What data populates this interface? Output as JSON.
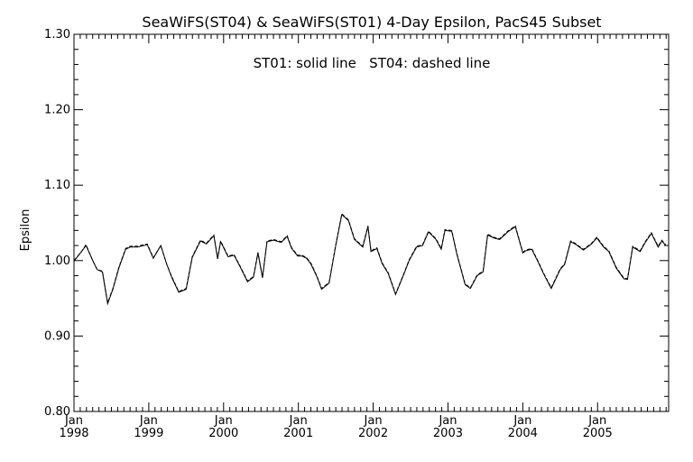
{
  "chart_data": {
    "type": "line",
    "title": "SeaWiFS(ST04) & SeaWiFS(ST01) 4-Day Epsilon, PacS45 Subset",
    "annotation": "ST01: solid line   ST04: dashed line",
    "xlabel": "",
    "ylabel": "Epsilon",
    "xlim": [
      1998.0,
      2005.95
    ],
    "ylim": [
      0.8,
      1.3
    ],
    "y_ticks": [
      "0.80",
      "0.90",
      "1.00",
      "1.10",
      "1.20",
      "1.30"
    ],
    "x_ticks": [
      {
        "value": 1998,
        "month": "Jan",
        "year": "1998"
      },
      {
        "value": 1999,
        "month": "Jan",
        "year": "1999"
      },
      {
        "value": 2000,
        "month": "Jan",
        "year": "2000"
      },
      {
        "value": 2001,
        "month": "Jan",
        "year": "2001"
      },
      {
        "value": 2002,
        "month": "Jan",
        "year": "2002"
      },
      {
        "value": 2003,
        "month": "Jan",
        "year": "2003"
      },
      {
        "value": 2004,
        "month": "Jan",
        "year": "2004"
      },
      {
        "value": 2005,
        "month": "Jan",
        "year": "2005"
      }
    ],
    "grid": false,
    "line_color": "#000000",
    "series": [
      {
        "name": "ST01",
        "style": "solid",
        "x": [
          1998.0,
          1998.1,
          1998.16,
          1998.26,
          1998.31,
          1998.38,
          1998.45,
          1998.52,
          1998.6,
          1998.69,
          1998.75,
          1998.85,
          1998.98,
          1999.06,
          1999.16,
          1999.24,
          1999.31,
          1999.4,
          1999.5,
          1999.58,
          1999.69,
          1999.77,
          1999.87,
          1999.92,
          1999.96,
          2000.06,
          2000.14,
          2000.22,
          2000.32,
          2000.4,
          2000.46,
          2000.52,
          2000.58,
          2000.67,
          2000.77,
          2000.85,
          2000.91,
          2000.99,
          2001.05,
          2001.11,
          2001.17,
          2001.25,
          2001.31,
          2001.41,
          2001.5,
          2001.58,
          2001.67,
          2001.75,
          2001.86,
          2001.93,
          2001.97,
          2002.05,
          2002.12,
          2002.2,
          2002.3,
          2002.41,
          2002.48,
          2002.58,
          2002.66,
          2002.74,
          2002.84,
          2002.91,
          2002.96,
          2003.05,
          2003.12,
          2003.23,
          2003.3,
          2003.39,
          2003.47,
          2003.53,
          2003.61,
          2003.69,
          2003.8,
          2003.9,
          2004.0,
          2004.04,
          2004.12,
          2004.21,
          2004.28,
          2004.38,
          2004.5,
          2004.56,
          2004.64,
          2004.7,
          2004.81,
          2004.92,
          2004.99,
          2005.08,
          2005.15,
          2005.25,
          2005.35,
          2005.4,
          2005.47,
          2005.57,
          2005.63,
          2005.72,
          2005.81,
          2005.86,
          2005.91
        ],
        "y": [
          0.999,
          1.012,
          1.02,
          0.998,
          0.988,
          0.985,
          0.943,
          0.962,
          0.99,
          1.015,
          1.018,
          1.018,
          1.021,
          1.003,
          1.02,
          0.995,
          0.977,
          0.958,
          0.962,
          1.004,
          1.026,
          1.022,
          1.033,
          1.002,
          1.025,
          1.005,
          1.007,
          0.992,
          0.972,
          0.978,
          1.01,
          0.977,
          1.025,
          1.027,
          1.024,
          1.032,
          1.016,
          1.006,
          1.006,
          1.003,
          0.995,
          0.978,
          0.962,
          0.97,
          1.02,
          1.061,
          1.053,
          1.028,
          1.018,
          1.045,
          1.012,
          1.016,
          0.996,
          0.983,
          0.955,
          0.982,
          1.0,
          1.018,
          1.02,
          1.038,
          1.028,
          1.015,
          1.04,
          1.039,
          1.008,
          0.968,
          0.963,
          0.98,
          0.985,
          1.034,
          1.03,
          1.028,
          1.038,
          1.045,
          1.01,
          1.013,
          1.015,
          0.997,
          0.982,
          0.963,
          0.988,
          0.995,
          1.025,
          1.022,
          1.014,
          1.022,
          1.03,
          1.018,
          1.012,
          0.99,
          0.976,
          0.975,
          1.018,
          1.012,
          1.023,
          1.036,
          1.018,
          1.026,
          1.02
        ]
      },
      {
        "name": "ST04",
        "style": "dashed",
        "x": [
          1998.0,
          1998.1,
          1998.16,
          1998.26,
          1998.31,
          1998.38,
          1998.45,
          1998.52,
          1998.6,
          1998.69,
          1998.75,
          1998.85,
          1998.98,
          1999.06,
          1999.16,
          1999.24,
          1999.31,
          1999.4,
          1999.5,
          1999.58,
          1999.69,
          1999.77,
          1999.87,
          1999.92,
          1999.96,
          2000.06,
          2000.14,
          2000.22,
          2000.32,
          2000.4,
          2000.46,
          2000.52,
          2000.58,
          2000.67,
          2000.77,
          2000.85,
          2000.91,
          2000.99,
          2001.05,
          2001.11,
          2001.17,
          2001.25,
          2001.31,
          2001.41,
          2001.5,
          2001.58,
          2001.67,
          2001.75,
          2001.86,
          2001.93,
          2001.97,
          2002.05,
          2002.12,
          2002.2,
          2002.3,
          2002.41,
          2002.48,
          2002.58,
          2002.66,
          2002.74,
          2002.84,
          2002.91,
          2002.96,
          2003.05,
          2003.12,
          2003.23,
          2003.3,
          2003.39,
          2003.47,
          2003.53,
          2003.61,
          2003.69,
          2003.8,
          2003.9,
          2004.0,
          2004.04,
          2004.12,
          2004.21,
          2004.28,
          2004.38,
          2004.5,
          2004.56,
          2004.64,
          2004.7,
          2004.81,
          2004.92,
          2004.99,
          2005.08,
          2005.15,
          2005.25,
          2005.35,
          2005.4,
          2005.47,
          2005.57,
          2005.63,
          2005.72,
          2005.81,
          2005.86,
          2005.91
        ],
        "y": [
          1.0,
          1.012,
          1.021,
          0.998,
          0.988,
          0.986,
          0.944,
          0.963,
          0.991,
          1.016,
          1.019,
          1.019,
          1.022,
          1.004,
          1.02,
          0.995,
          0.978,
          0.959,
          0.963,
          1.005,
          1.027,
          1.023,
          1.034,
          1.003,
          1.026,
          1.006,
          1.008,
          0.993,
          0.973,
          0.979,
          1.011,
          0.978,
          1.026,
          1.028,
          1.025,
          1.033,
          1.017,
          1.007,
          1.007,
          1.004,
          0.996,
          0.979,
          0.963,
          0.971,
          1.021,
          1.062,
          1.054,
          1.029,
          1.019,
          1.046,
          1.013,
          1.017,
          0.997,
          0.984,
          0.956,
          0.983,
          1.001,
          1.019,
          1.021,
          1.039,
          1.029,
          1.016,
          1.041,
          1.04,
          1.009,
          0.969,
          0.964,
          0.981,
          0.986,
          1.035,
          1.031,
          1.029,
          1.039,
          1.046,
          1.011,
          1.014,
          1.016,
          0.998,
          0.983,
          0.964,
          0.989,
          0.996,
          1.026,
          1.023,
          1.015,
          1.023,
          1.031,
          1.019,
          1.013,
          0.991,
          0.977,
          0.976,
          1.019,
          1.013,
          1.024,
          1.037,
          1.019,
          1.027,
          1.021
        ]
      }
    ]
  }
}
